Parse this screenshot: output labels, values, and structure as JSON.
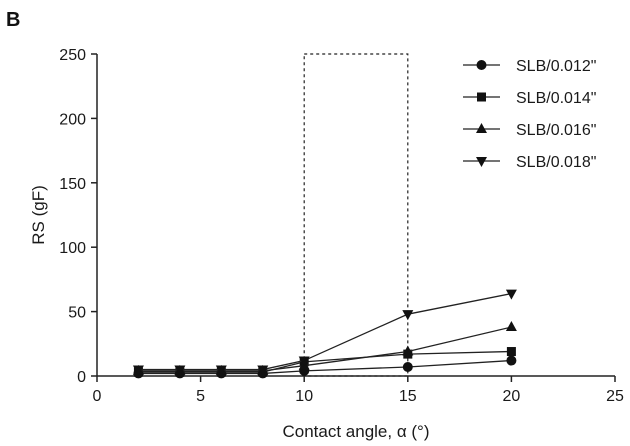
{
  "panel_label": "B",
  "chart_data": {
    "type": "line",
    "xlabel": "Contact angle, α (°)",
    "ylabel": "RS (gF)",
    "xlim": [
      0,
      25
    ],
    "ylim": [
      0,
      250
    ],
    "xticks": [
      "0",
      "5",
      "10",
      "15",
      "20",
      "25"
    ],
    "yticks": [
      "0",
      "50",
      "100",
      "150",
      "200",
      "250"
    ],
    "grid": false,
    "legend_position": "top-right",
    "highlight_region": {
      "x": [
        10,
        15
      ],
      "y": [
        0,
        250
      ],
      "style": "dashed"
    },
    "series": [
      {
        "name": "SLB/0.012\"",
        "marker": "circle",
        "x": [
          2,
          4,
          6,
          8,
          10,
          15,
          20
        ],
        "y": [
          2,
          2,
          2,
          2,
          4,
          7,
          12
        ]
      },
      {
        "name": "SLB/0.014\"",
        "marker": "square",
        "x": [
          2,
          4,
          6,
          8,
          10,
          15,
          20
        ],
        "y": [
          3,
          3,
          3,
          3,
          11,
          17,
          19
        ]
      },
      {
        "name": "SLB/0.016\"",
        "marker": "triangle-up",
        "x": [
          2,
          4,
          6,
          8,
          10,
          15,
          20
        ],
        "y": [
          4,
          4,
          4,
          4,
          8,
          19,
          38
        ]
      },
      {
        "name": "SLB/0.018\"",
        "marker": "triangle-down",
        "x": [
          2,
          4,
          6,
          8,
          10,
          15,
          20
        ],
        "y": [
          5,
          5,
          5,
          5,
          12,
          48,
          64
        ]
      }
    ]
  }
}
